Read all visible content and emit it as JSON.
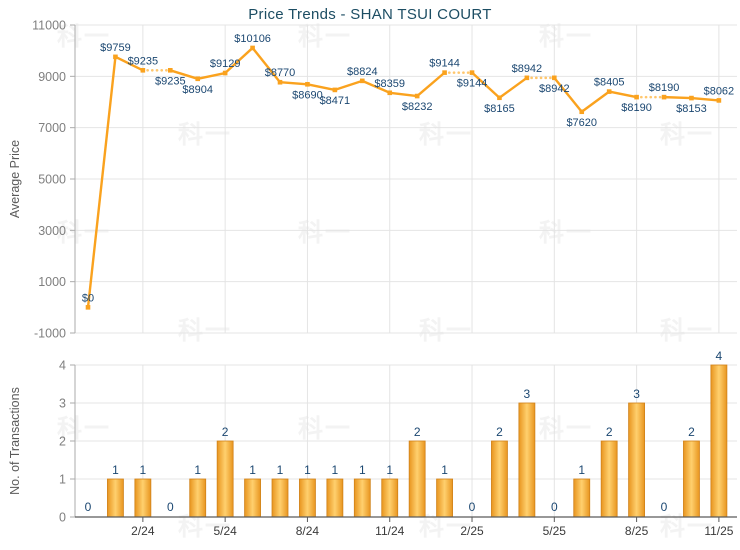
{
  "title": "Price Trends - SHAN TSUI COURT",
  "watermark": "科一",
  "colors": {
    "line": "#FAA21E",
    "line_dotted": "#FFC76E",
    "bar_edge": "#E8951F",
    "bar_center": "#FFD06E",
    "bar_stroke": "#D0821A",
    "value_text": "#1B4771",
    "title_text": "#1C4D63",
    "tick_text": "#7F7F7F",
    "date_text": "#3A3A3A",
    "axis_label_text": "#5A5A5A",
    "grid": "#E4E4E4",
    "axis_line": "#ABABAB",
    "baseline": "#5A5A5A",
    "watermark": "#F3F3F3"
  },
  "chart_data": [
    {
      "type": "line",
      "title": "Price Trends - SHAN TSUI COURT",
      "ylabel": "Average Price",
      "ylim": [
        -1000,
        11000
      ],
      "yticks": [
        11000,
        9000,
        7000,
        5000,
        3000,
        1000,
        -1000
      ],
      "x_tick_indices": [
        2,
        5,
        8,
        11,
        14,
        17,
        20,
        23
      ],
      "x_tick_labels": [
        "2/24",
        "5/24",
        "8/24",
        "11/24",
        "2/25",
        "5/25",
        "8/25",
        "11/25"
      ],
      "values": [
        0,
        9759,
        9235,
        9235,
        8904,
        9129,
        10106,
        8770,
        8690,
        8471,
        8824,
        8359,
        8232,
        9144,
        9144,
        8165,
        8942,
        8942,
        7620,
        8405,
        8190,
        8190,
        8153,
        8062
      ],
      "point_labels": [
        "$0",
        "$9759",
        "$9235",
        "$9235",
        "$8904",
        "$9129",
        "$10106",
        "$8770",
        "$8690",
        "$8471",
        "$8824",
        "$8359",
        "$8232",
        "$9144",
        "$9144",
        "$8165",
        "$8942",
        "$8942",
        "$7620",
        "$8405",
        "$8190",
        "$8190",
        "$8153",
        "$8062"
      ],
      "label_positions": [
        "above",
        "above",
        "above",
        "below",
        "below",
        "above",
        "above",
        "above",
        "below",
        "below",
        "above",
        "above",
        "below",
        "above",
        "below",
        "below",
        "above",
        "below",
        "below",
        "above",
        "below",
        "above",
        "below",
        "above"
      ],
      "dotted_segment_when_no_transactions": true,
      "grid": true,
      "legend": "none"
    },
    {
      "type": "bar",
      "ylabel": "No. of Transactions",
      "ylim": [
        0,
        4
      ],
      "yticks": [
        0,
        1,
        2,
        3,
        4
      ],
      "x_tick_indices": [
        2,
        5,
        8,
        11,
        14,
        17,
        20,
        23
      ],
      "x_tick_labels": [
        "2/24",
        "5/24",
        "8/24",
        "11/24",
        "2/25",
        "5/25",
        "8/25",
        "11/25"
      ],
      "values": [
        0,
        1,
        1,
        0,
        1,
        2,
        1,
        1,
        1,
        1,
        1,
        1,
        2,
        1,
        0,
        2,
        3,
        0,
        1,
        2,
        3,
        0,
        2,
        4
      ],
      "grid": true,
      "legend": "none"
    }
  ]
}
